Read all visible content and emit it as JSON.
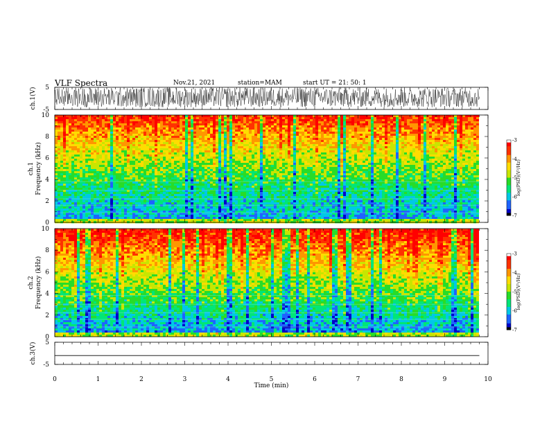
{
  "header": {
    "title": "VLF Spectra",
    "date": "Nov.21, 2021",
    "station": "station=MAM",
    "start": "start UT =   21: 50: 1"
  },
  "colors": {
    "background": "#ffffff",
    "axes": "#000000",
    "colormap": [
      "#000000",
      "#0000c8",
      "#1e64ff",
      "#00c8e6",
      "#00e678",
      "#28dc28",
      "#c8e600",
      "#ffdc00",
      "#ff9600",
      "#ff3200",
      "#ff0000",
      "#ffffff"
    ]
  },
  "chart_data": [
    {
      "type": "line",
      "panel": "ch1-waveform",
      "ylabel": "ch.1(V)",
      "ylim": [
        -5,
        5
      ],
      "yticks": [
        5,
        -5
      ],
      "xlim": [
        0,
        10
      ],
      "description_values": "noise waveform spanning roughly -4 to +5 V"
    },
    {
      "type": "heatmap",
      "panel": "ch1-spectrogram",
      "ylabel": "ch.1\nFrequency (kHz)",
      "ylim": [
        0,
        10
      ],
      "yticks": [
        0,
        2,
        4,
        6,
        8,
        10
      ],
      "xlim": [
        0,
        9.8
      ],
      "colorbar": {
        "label": "log(PSD)(V^2/Hz)",
        "range": [
          -7,
          -3
        ],
        "ticks": [
          -3,
          -4,
          -5,
          -6,
          -7
        ]
      }
    },
    {
      "type": "heatmap",
      "panel": "ch2-spectrogram",
      "ylabel": "ch.2\nFrequency (kHz)",
      "ylim": [
        0,
        10
      ],
      "yticks": [
        0,
        2,
        4,
        6,
        8,
        10
      ],
      "xlim": [
        0,
        9.8
      ],
      "colorbar": {
        "label": "log(PSD)(V^2/Hz)",
        "range": [
          -7,
          -3
        ],
        "ticks": [
          -3,
          -4,
          -5,
          -6,
          -7
        ]
      }
    },
    {
      "type": "line",
      "panel": "ch3-waveform",
      "ylabel": "ch.3(V)",
      "ylim": [
        -5,
        5
      ],
      "yticks": [
        5,
        -5
      ],
      "xlim": [
        0,
        10
      ],
      "x": [
        0,
        9.8
      ],
      "y": [
        -1,
        -1
      ]
    }
  ],
  "xaxis": {
    "label": "Time (min)",
    "ticks": [
      0,
      1,
      2,
      3,
      4,
      5,
      6,
      7,
      8,
      9,
      10
    ],
    "tick_labels": [
      "0",
      "1",
      "2",
      "3",
      "4",
      "5",
      "6",
      "7",
      "8",
      "9",
      "10"
    ]
  },
  "labels": {
    "ch1_ylabel": "ch.1(V)",
    "ch1s_line1": "ch.1",
    "ch1s_line2": "Frequency (kHz)",
    "ch2s_line1": "ch.2",
    "ch2s_line2": "Frequency (kHz)",
    "ch3_ylabel": "ch.3(V)",
    "colorbar_label": "log(PSD)(V²/Hz)",
    "wave_ticks": [
      "5",
      "-5"
    ],
    "freq_ticks": [
      "0",
      "2",
      "4",
      "6",
      "8",
      "10"
    ],
    "cb_ticks": [
      "-3",
      "-4",
      "-5",
      "-6",
      "-7"
    ]
  }
}
